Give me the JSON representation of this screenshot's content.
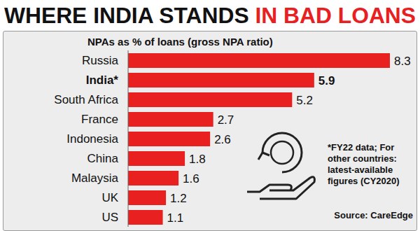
{
  "chart_data": {
    "type": "bar",
    "orientation": "horizontal",
    "title": [
      "WHERE INDIA STANDS",
      "IN BAD LOANS"
    ],
    "subtitle": "NPAs as % of loans (gross NPA ratio)",
    "categories": [
      "Russia",
      "India*",
      "South Africa",
      "France",
      "Indonesia",
      "China",
      "Malaysia",
      "UK",
      "US"
    ],
    "values": [
      8.3,
      5.9,
      5.2,
      2.7,
      2.6,
      1.8,
      1.6,
      1.2,
      1.1
    ],
    "color": "#e8201f",
    "xlim": [
      0,
      8.3
    ],
    "data_labels": true,
    "tick_labels": "y",
    "grid": false,
    "annotations": [
      "*FY22 data; For other countries: latest-available figures (CY2020)",
      "Source: CareEdge"
    ]
  }
}
